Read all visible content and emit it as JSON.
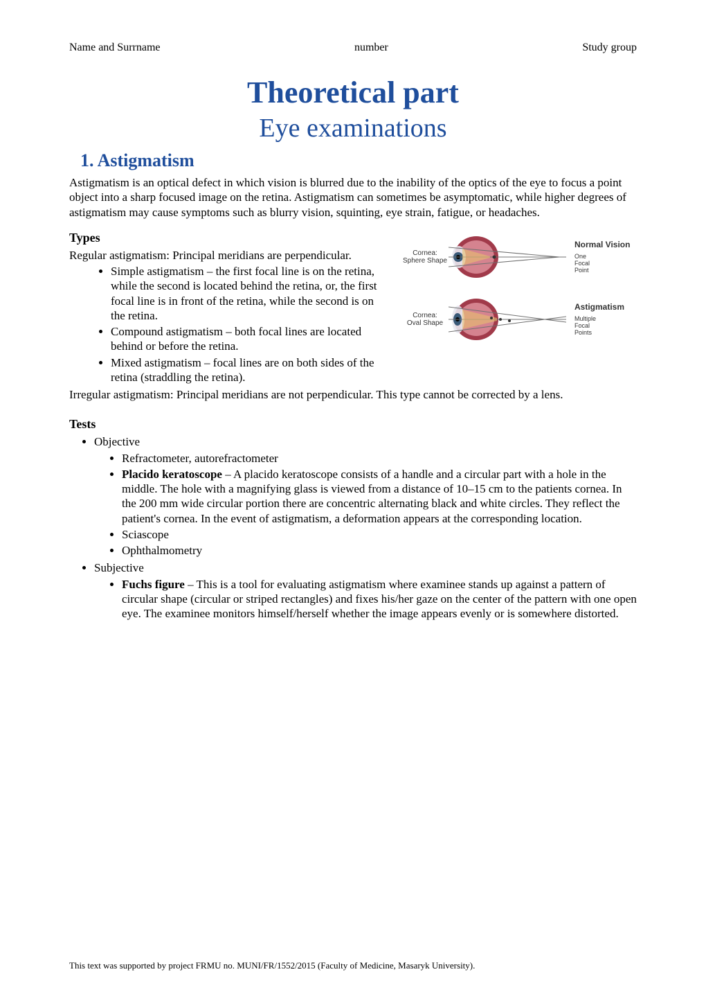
{
  "header": {
    "left": "Name and Surrname",
    "center": "number",
    "right": "Study group"
  },
  "title": {
    "main": "Theoretical part",
    "sub": "Eye examinations",
    "color": "#1f4e9c",
    "main_fontsize": 44,
    "sub_fontsize": 38
  },
  "section1": {
    "heading": "1.  Astigmatism",
    "intro": "Astigmatism is an optical defect in which vision is blurred due to the inability of the optics of the eye to focus a point object into a sharp focused image on the retina. Astigmatism can sometimes be asymptomatic, while higher degrees of astigmatism may cause symptoms such as blurry vision, squinting, eye strain, fatigue, or headaches.",
    "types_heading": "Types",
    "types_intro": "Regular astigmatism: Principal meridians are perpendicular.",
    "types_bullets": [
      "Simple astigmatism – the first focal line is on the retina, while the second is located behind the retina, or, the first focal line is in front of the retina, while the second is on the retina.",
      "Compound astigmatism – both focal lines are located behind or before the retina.",
      "Mixed astigmatism – focal lines are on both sides of the retina (straddling the retina)."
    ],
    "types_outro": "Irregular astigmatism: Principal meridians are not perpendicular. This type cannot be corrected by a lens.",
    "tests_heading": "Tests",
    "tests_objective_label": "Objective",
    "tests_objective_items": [
      "Refractometer, autorefractometer",
      "Placido keratoscope – A placido keratoscope consists of a handle and a circular part with a hole in the middle. The hole with a magnifying glass is viewed from a distance of 10–15 cm to the patients cornea. In the 200 mm wide circular portion there are concentric alternating black and white circles. They reflect the patient's cornea. In the event of astigmatism, a deformation appears at the corresponding location.",
      "Sciascope",
      "Ophthalmometry"
    ],
    "tests_objective_bold": {
      "1": "Placido keratoscope"
    },
    "tests_subjective_label": "Subjective",
    "tests_subjective_items": [
      "Fuchs figure – This is a tool for evaluating astigmatism where examinee stands up against a pattern of circular shape (circular or striped rectangles) and fixes his/her gaze on the center of the pattern with one open eye. The examinee monitors himself/herself whether the image appears evenly or is somewhere distorted."
    ],
    "tests_subjective_bold": {
      "0": "Fuchs figure"
    }
  },
  "figure": {
    "normal": {
      "left_label": "Cornea:\nSphere Shape",
      "right_title": "Normal Vision",
      "right_sub": "One\nFocal\nPoint"
    },
    "astig": {
      "left_label": "Cornea:\nOval Shape",
      "right_title": "Astigmatism",
      "right_sub": "Multiple\nFocal\nPoints"
    },
    "colors": {
      "eye_outer": "#a13a4a",
      "eye_inner": "#d5838f",
      "iris": "#3a5a78",
      "line": "#707070",
      "cone": "#e8c070"
    }
  },
  "footer": "This text was supported by project FRMU no. MUNI/FR/1552/2015 (Faculty of Medicine, Masaryk University)."
}
